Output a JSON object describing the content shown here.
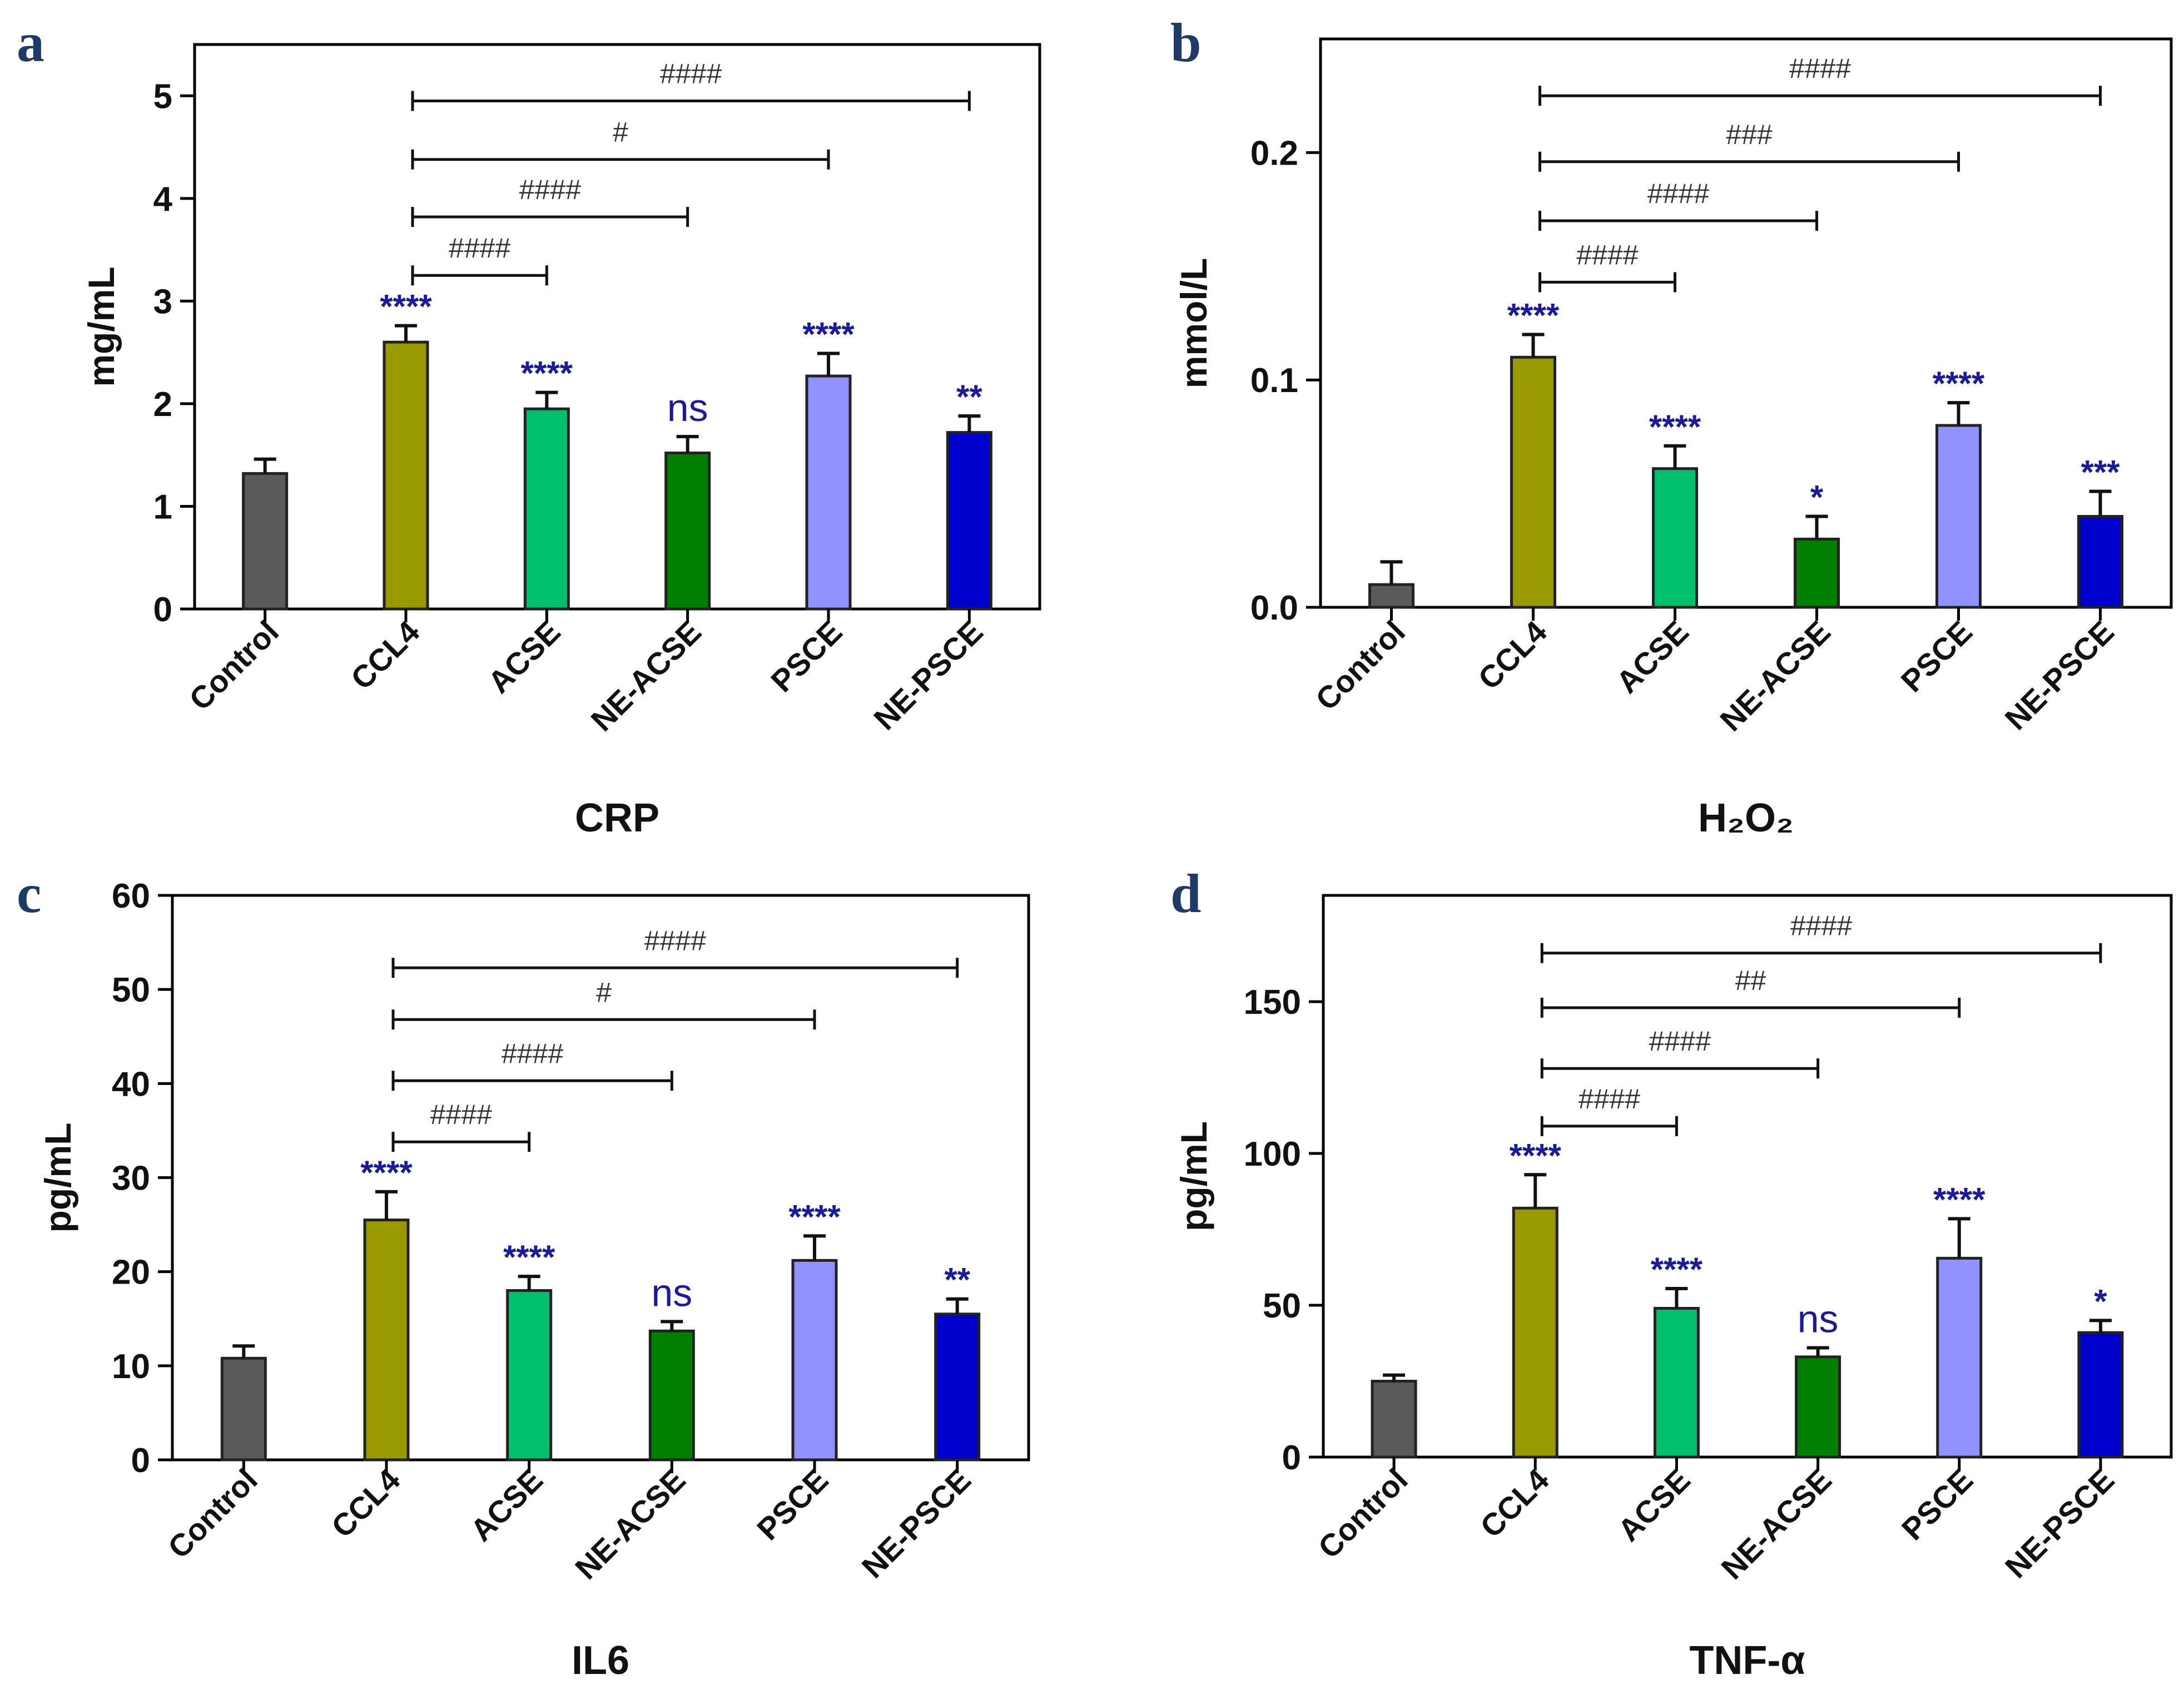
{
  "chart_data": [
    {
      "type": "bar",
      "panel_label": "a",
      "title": "CRP",
      "ylabel": "mg/mL",
      "ylim": [
        0,
        5.5
      ],
      "yticks": [
        0,
        1,
        2,
        3,
        4,
        5
      ],
      "ytick_labels": [
        "0",
        "1",
        "2",
        "3",
        "4",
        "5"
      ],
      "categories": [
        "Control",
        "CCL4",
        "ACSE",
        "NE-ACSE",
        "PSCE",
        "NE-PSCE"
      ],
      "values": [
        1.32,
        2.6,
        1.95,
        1.52,
        2.27,
        1.72
      ],
      "errors": [
        0.14,
        0.16,
        0.16,
        0.16,
        0.22,
        0.16
      ],
      "colors": [
        "#5a5a5a",
        "#999900",
        "#00c06e",
        "#007f00",
        "#9191ff",
        "#0000cc"
      ],
      "significance": [
        "",
        "****",
        "****",
        "ns",
        "****",
        "**"
      ],
      "comparisons": [
        {
          "from": 1,
          "to": 2,
          "label": "####",
          "y": 3.25
        },
        {
          "from": 1,
          "to": 3,
          "label": "####",
          "y": 3.82
        },
        {
          "from": 1,
          "to": 4,
          "label": "#",
          "y": 4.38
        },
        {
          "from": 1,
          "to": 5,
          "label": "####",
          "y": 4.95
        }
      ]
    },
    {
      "type": "bar",
      "panel_label": "b",
      "title": "H₂O₂",
      "ylabel": "mmol/L",
      "ylim": [
        0,
        0.25
      ],
      "yticks": [
        0,
        0.1,
        0.2
      ],
      "ytick_labels": [
        "0.0",
        "0.1",
        "0.2"
      ],
      "categories": [
        "Control",
        "CCL4",
        "ACSE",
        "NE-ACSE",
        "PSCE",
        "NE-PSCE"
      ],
      "values": [
        0.01,
        0.11,
        0.061,
        0.03,
        0.08,
        0.04
      ],
      "errors": [
        0.01,
        0.01,
        0.01,
        0.01,
        0.01,
        0.011
      ],
      "colors": [
        "#5a5a5a",
        "#999900",
        "#00c06e",
        "#007f00",
        "#9191ff",
        "#0000cc"
      ],
      "significance": [
        "",
        "****",
        "****",
        "*",
        "****",
        "***"
      ],
      "comparisons": [
        {
          "from": 1,
          "to": 2,
          "label": "####",
          "y": 0.143
        },
        {
          "from": 1,
          "to": 3,
          "label": "####",
          "y": 0.17
        },
        {
          "from": 1,
          "to": 4,
          "label": "###",
          "y": 0.196
        },
        {
          "from": 1,
          "to": 5,
          "label": "####",
          "y": 0.225
        }
      ]
    },
    {
      "type": "bar",
      "panel_label": "c",
      "title": "IL6",
      "ylabel": "pg/mL",
      "ylim": [
        0,
        60
      ],
      "yticks": [
        0,
        10,
        20,
        30,
        40,
        50,
        60
      ],
      "ytick_labels": [
        "0",
        "10",
        "20",
        "30",
        "40",
        "50",
        "60"
      ],
      "categories": [
        "Control",
        "CCL4",
        "ACSE",
        "NE-ACSE",
        "PSCE",
        "NE-PSCE"
      ],
      "values": [
        10.8,
        25.5,
        18.0,
        13.7,
        21.2,
        15.5
      ],
      "errors": [
        1.3,
        3.0,
        1.5,
        1.0,
        2.6,
        1.6
      ],
      "colors": [
        "#5a5a5a",
        "#999900",
        "#00c06e",
        "#007f00",
        "#9191ff",
        "#0000cc"
      ],
      "significance": [
        "",
        "****",
        "****",
        "ns",
        "****",
        "**"
      ],
      "comparisons": [
        {
          "from": 1,
          "to": 2,
          "label": "####",
          "y": 33.8
        },
        {
          "from": 1,
          "to": 3,
          "label": "####",
          "y": 40.3
        },
        {
          "from": 1,
          "to": 4,
          "label": "#",
          "y": 46.8
        },
        {
          "from": 1,
          "to": 5,
          "label": "####",
          "y": 52.3
        }
      ]
    },
    {
      "type": "bar",
      "panel_label": "d",
      "title": "TNF-α",
      "ylabel": "pg/mL",
      "ylim": [
        0,
        185
      ],
      "yticks": [
        0,
        50,
        100,
        150
      ],
      "ytick_labels": [
        "0",
        "50",
        "100",
        "150"
      ],
      "categories": [
        "Control",
        "CCL4",
        "ACSE",
        "NE-ACSE",
        "PSCE",
        "NE-PSCE"
      ],
      "values": [
        25,
        82,
        49,
        33,
        65.5,
        41
      ],
      "errors": [
        2,
        11,
        6.5,
        3,
        13,
        4
      ],
      "colors": [
        "#5a5a5a",
        "#999900",
        "#00c06e",
        "#007f00",
        "#9191ff",
        "#0000cc"
      ],
      "significance": [
        "",
        "****",
        "****",
        "ns",
        "****",
        "*"
      ],
      "comparisons": [
        {
          "from": 1,
          "to": 2,
          "label": "####",
          "y": 109
        },
        {
          "from": 1,
          "to": 3,
          "label": "####",
          "y": 128
        },
        {
          "from": 1,
          "to": 4,
          "label": "##",
          "y": 148
        },
        {
          "from": 1,
          "to": 5,
          "label": "####",
          "y": 166
        }
      ]
    }
  ]
}
